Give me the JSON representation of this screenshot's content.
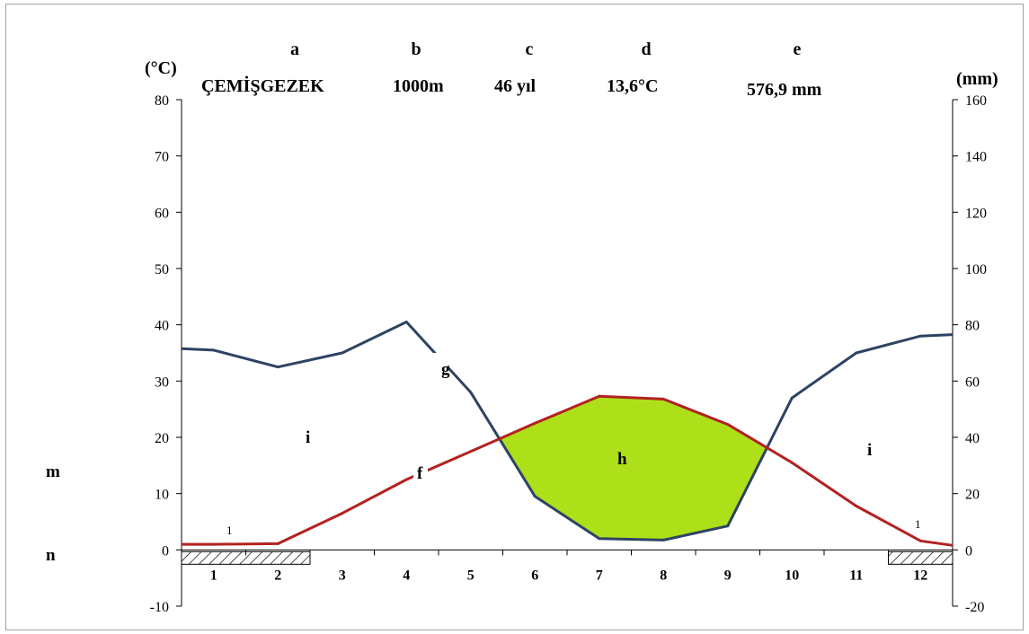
{
  "chart_data": {
    "type": "line",
    "title": "",
    "header_letters": [
      "a",
      "b",
      "c",
      "d",
      "e"
    ],
    "header_values": [
      "ÇEMİŞGEZEK",
      "1000m",
      "46 yıl",
      "13,6°C",
      "576,9 mm"
    ],
    "ylabel_left": "(°C)",
    "ylabel_right": "(mm)",
    "categories": [
      "1",
      "2",
      "3",
      "4",
      "5",
      "6",
      "7",
      "8",
      "9",
      "10",
      "11",
      "12"
    ],
    "ylim_left": [
      -10,
      80
    ],
    "ylim_right": [
      -20,
      160
    ],
    "yticks_left": [
      "80",
      "70",
      "60",
      "50",
      "40",
      "30",
      "20",
      "10",
      "0",
      "-10"
    ],
    "yticks_right": [
      "160",
      "140",
      "120",
      "100",
      "80",
      "60",
      "40",
      "20",
      "0",
      "-20"
    ],
    "series": [
      {
        "axis": "left",
        "color": "#b22222",
        "values": [
          1.0,
          1.1,
          6.5,
          12.5,
          17.5,
          22.5,
          27.3,
          26.8,
          22.3,
          15.5,
          7.8,
          1.6
        ]
      },
      {
        "axis": "right",
        "color": "#2e4364",
        "values": [
          71,
          65,
          70,
          81,
          56,
          19,
          4,
          3.5,
          8.5,
          54,
          70,
          76
        ]
      }
    ],
    "edge_values": {
      "temp_start": 1.0,
      "temp_end": 0.8,
      "precip_start": 71.5,
      "precip_end": 76.5
    },
    "arid_fill_color": "#aee01a",
    "frost_months": {
      "start": [
        "1",
        "2"
      ],
      "end": [
        "12"
      ]
    },
    "annotations": {
      "g": "g",
      "f": "f",
      "h": "h",
      "i_left": "i",
      "i_right": "i",
      "m": "m",
      "n": "n",
      "one_left": "1",
      "one_right": "1"
    }
  }
}
